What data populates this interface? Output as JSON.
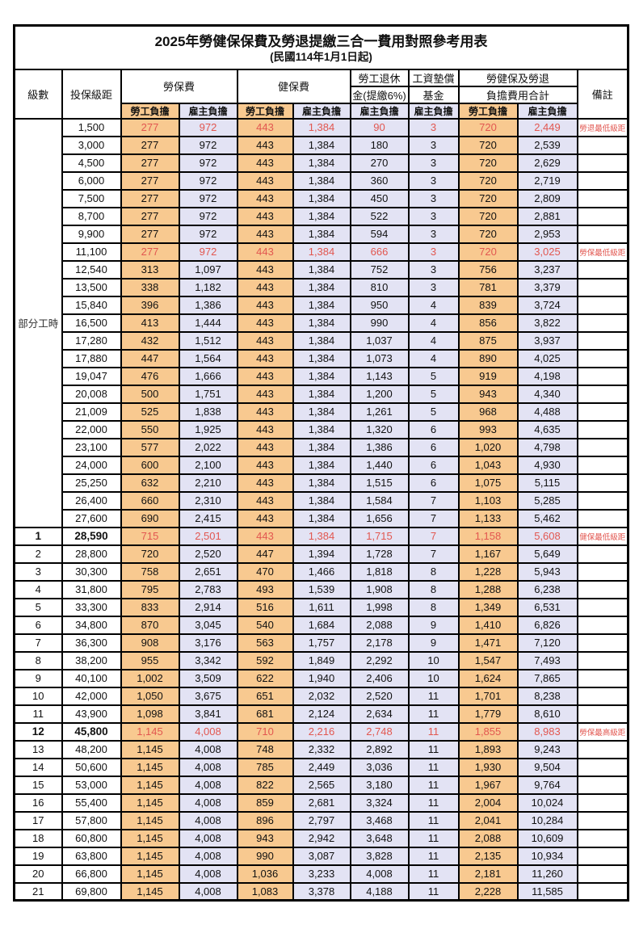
{
  "title": "2025年勞健保保費及勞退提繳三合一費用對照參考用表",
  "subtitle": "(民國114年1月1日起)",
  "columns": {
    "level": "級數",
    "bracket": "投保級距",
    "labor_ins": "勞保費",
    "health_ins": "健保費",
    "pension_line1": "勞工退休",
    "pension_line2": "金(提繳6%)",
    "wage_fund_line1": "工資墊償",
    "wage_fund_line2": "基金",
    "total_line1": "勞健保及勞退",
    "total_line2": "負擔費用合計",
    "remark": "備註"
  },
  "sub_headers": [
    "勞工負擔",
    "雇主負擔",
    "勞工負擔",
    "雇主負擔",
    "雇主負擔",
    "雇主負擔",
    "勞工負擔",
    "雇主負擔"
  ],
  "part_time": {
    "label": "部分工時",
    "rowspan": 23
  },
  "colors": {
    "employee_bg": "#F8C990",
    "employer_bg": "#E3E3F4",
    "highlight_red": "#E25750",
    "border": "#000000"
  },
  "rows": [
    {
      "bracket": "1,500",
      "li_emp": "277",
      "li_er": "972",
      "hi_emp": "443",
      "hi_er": "1,384",
      "pension": "90",
      "fund": "3",
      "tot_emp": "720",
      "tot_er": "2,449",
      "remark": "勞退最低級距",
      "red": true
    },
    {
      "bracket": "3,000",
      "li_emp": "277",
      "li_er": "972",
      "hi_emp": "443",
      "hi_er": "1,384",
      "pension": "180",
      "fund": "3",
      "tot_emp": "720",
      "tot_er": "2,539",
      "remark": ""
    },
    {
      "bracket": "4,500",
      "li_emp": "277",
      "li_er": "972",
      "hi_emp": "443",
      "hi_er": "1,384",
      "pension": "270",
      "fund": "3",
      "tot_emp": "720",
      "tot_er": "2,629",
      "remark": ""
    },
    {
      "bracket": "6,000",
      "li_emp": "277",
      "li_er": "972",
      "hi_emp": "443",
      "hi_er": "1,384",
      "pension": "360",
      "fund": "3",
      "tot_emp": "720",
      "tot_er": "2,719",
      "remark": ""
    },
    {
      "bracket": "7,500",
      "li_emp": "277",
      "li_er": "972",
      "hi_emp": "443",
      "hi_er": "1,384",
      "pension": "450",
      "fund": "3",
      "tot_emp": "720",
      "tot_er": "2,809",
      "remark": ""
    },
    {
      "bracket": "8,700",
      "li_emp": "277",
      "li_er": "972",
      "hi_emp": "443",
      "hi_er": "1,384",
      "pension": "522",
      "fund": "3",
      "tot_emp": "720",
      "tot_er": "2,881",
      "remark": ""
    },
    {
      "bracket": "9,900",
      "li_emp": "277",
      "li_er": "972",
      "hi_emp": "443",
      "hi_er": "1,384",
      "pension": "594",
      "fund": "3",
      "tot_emp": "720",
      "tot_er": "2,953",
      "remark": ""
    },
    {
      "bracket": "11,100",
      "li_emp": "277",
      "li_er": "972",
      "hi_emp": "443",
      "hi_er": "1,384",
      "pension": "666",
      "fund": "3",
      "tot_emp": "720",
      "tot_er": "3,025",
      "remark": "勞保最低級距",
      "red": true
    },
    {
      "bracket": "12,540",
      "li_emp": "313",
      "li_er": "1,097",
      "hi_emp": "443",
      "hi_er": "1,384",
      "pension": "752",
      "fund": "3",
      "tot_emp": "756",
      "tot_er": "3,237",
      "remark": ""
    },
    {
      "bracket": "13,500",
      "li_emp": "338",
      "li_er": "1,182",
      "hi_emp": "443",
      "hi_er": "1,384",
      "pension": "810",
      "fund": "3",
      "tot_emp": "781",
      "tot_er": "3,379",
      "remark": ""
    },
    {
      "bracket": "15,840",
      "li_emp": "396",
      "li_er": "1,386",
      "hi_emp": "443",
      "hi_er": "1,384",
      "pension": "950",
      "fund": "4",
      "tot_emp": "839",
      "tot_er": "3,724",
      "remark": ""
    },
    {
      "bracket": "16,500",
      "li_emp": "413",
      "li_er": "1,444",
      "hi_emp": "443",
      "hi_er": "1,384",
      "pension": "990",
      "fund": "4",
      "tot_emp": "856",
      "tot_er": "3,822",
      "remark": ""
    },
    {
      "bracket": "17,280",
      "li_emp": "432",
      "li_er": "1,512",
      "hi_emp": "443",
      "hi_er": "1,384",
      "pension": "1,037",
      "fund": "4",
      "tot_emp": "875",
      "tot_er": "3,937",
      "remark": ""
    },
    {
      "bracket": "17,880",
      "li_emp": "447",
      "li_er": "1,564",
      "hi_emp": "443",
      "hi_er": "1,384",
      "pension": "1,073",
      "fund": "4",
      "tot_emp": "890",
      "tot_er": "4,025",
      "remark": ""
    },
    {
      "bracket": "19,047",
      "li_emp": "476",
      "li_er": "1,666",
      "hi_emp": "443",
      "hi_er": "1,384",
      "pension": "1,143",
      "fund": "5",
      "tot_emp": "919",
      "tot_er": "4,198",
      "remark": ""
    },
    {
      "bracket": "20,008",
      "li_emp": "500",
      "li_er": "1,751",
      "hi_emp": "443",
      "hi_er": "1,384",
      "pension": "1,200",
      "fund": "5",
      "tot_emp": "943",
      "tot_er": "4,340",
      "remark": ""
    },
    {
      "bracket": "21,009",
      "li_emp": "525",
      "li_er": "1,838",
      "hi_emp": "443",
      "hi_er": "1,384",
      "pension": "1,261",
      "fund": "5",
      "tot_emp": "968",
      "tot_er": "4,488",
      "remark": ""
    },
    {
      "bracket": "22,000",
      "li_emp": "550",
      "li_er": "1,925",
      "hi_emp": "443",
      "hi_er": "1,384",
      "pension": "1,320",
      "fund": "6",
      "tot_emp": "993",
      "tot_er": "4,635",
      "remark": ""
    },
    {
      "bracket": "23,100",
      "li_emp": "577",
      "li_er": "2,022",
      "hi_emp": "443",
      "hi_er": "1,384",
      "pension": "1,386",
      "fund": "6",
      "tot_emp": "1,020",
      "tot_er": "4,798",
      "remark": ""
    },
    {
      "bracket": "24,000",
      "li_emp": "600",
      "li_er": "2,100",
      "hi_emp": "443",
      "hi_er": "1,384",
      "pension": "1,440",
      "fund": "6",
      "tot_emp": "1,043",
      "tot_er": "4,930",
      "remark": ""
    },
    {
      "bracket": "25,250",
      "li_emp": "632",
      "li_er": "2,210",
      "hi_emp": "443",
      "hi_er": "1,384",
      "pension": "1,515",
      "fund": "6",
      "tot_emp": "1,075",
      "tot_er": "5,115",
      "remark": ""
    },
    {
      "bracket": "26,400",
      "li_emp": "660",
      "li_er": "2,310",
      "hi_emp": "443",
      "hi_er": "1,384",
      "pension": "1,584",
      "fund": "7",
      "tot_emp": "1,103",
      "tot_er": "5,285",
      "remark": ""
    },
    {
      "bracket": "27,600",
      "li_emp": "690",
      "li_er": "2,415",
      "hi_emp": "443",
      "hi_er": "1,384",
      "pension": "1,656",
      "fund": "7",
      "tot_emp": "1,133",
      "tot_er": "5,462",
      "remark": ""
    },
    {
      "level": "1",
      "bracket": "28,590",
      "li_emp": "715",
      "li_er": "2,501",
      "hi_emp": "443",
      "hi_er": "1,384",
      "pension": "1,715",
      "fund": "7",
      "tot_emp": "1,158",
      "tot_er": "5,608",
      "remark": "健保最低級距",
      "red": true,
      "bold": true
    },
    {
      "level": "2",
      "bracket": "28,800",
      "li_emp": "720",
      "li_er": "2,520",
      "hi_emp": "447",
      "hi_er": "1,394",
      "pension": "1,728",
      "fund": "7",
      "tot_emp": "1,167",
      "tot_er": "5,649",
      "remark": ""
    },
    {
      "level": "3",
      "bracket": "30,300",
      "li_emp": "758",
      "li_er": "2,651",
      "hi_emp": "470",
      "hi_er": "1,466",
      "pension": "1,818",
      "fund": "8",
      "tot_emp": "1,228",
      "tot_er": "5,943",
      "remark": ""
    },
    {
      "level": "4",
      "bracket": "31,800",
      "li_emp": "795",
      "li_er": "2,783",
      "hi_emp": "493",
      "hi_er": "1,539",
      "pension": "1,908",
      "fund": "8",
      "tot_emp": "1,288",
      "tot_er": "6,238",
      "remark": ""
    },
    {
      "level": "5",
      "bracket": "33,300",
      "li_emp": "833",
      "li_er": "2,914",
      "hi_emp": "516",
      "hi_er": "1,611",
      "pension": "1,998",
      "fund": "8",
      "tot_emp": "1,349",
      "tot_er": "6,531",
      "remark": ""
    },
    {
      "level": "6",
      "bracket": "34,800",
      "li_emp": "870",
      "li_er": "3,045",
      "hi_emp": "540",
      "hi_er": "1,684",
      "pension": "2,088",
      "fund": "9",
      "tot_emp": "1,410",
      "tot_er": "6,826",
      "remark": ""
    },
    {
      "level": "7",
      "bracket": "36,300",
      "li_emp": "908",
      "li_er": "3,176",
      "hi_emp": "563",
      "hi_er": "1,757",
      "pension": "2,178",
      "fund": "9",
      "tot_emp": "1,471",
      "tot_er": "7,120",
      "remark": ""
    },
    {
      "level": "8",
      "bracket": "38,200",
      "li_emp": "955",
      "li_er": "3,342",
      "hi_emp": "592",
      "hi_er": "1,849",
      "pension": "2,292",
      "fund": "10",
      "tot_emp": "1,547",
      "tot_er": "7,493",
      "remark": ""
    },
    {
      "level": "9",
      "bracket": "40,100",
      "li_emp": "1,002",
      "li_er": "3,509",
      "hi_emp": "622",
      "hi_er": "1,940",
      "pension": "2,406",
      "fund": "10",
      "tot_emp": "1,624",
      "tot_er": "7,865",
      "remark": ""
    },
    {
      "level": "10",
      "bracket": "42,000",
      "li_emp": "1,050",
      "li_er": "3,675",
      "hi_emp": "651",
      "hi_er": "2,032",
      "pension": "2,520",
      "fund": "11",
      "tot_emp": "1,701",
      "tot_er": "8,238",
      "remark": ""
    },
    {
      "level": "11",
      "bracket": "43,900",
      "li_emp": "1,098",
      "li_er": "3,841",
      "hi_emp": "681",
      "hi_er": "2,124",
      "pension": "2,634",
      "fund": "11",
      "tot_emp": "1,779",
      "tot_er": "8,610",
      "remark": ""
    },
    {
      "level": "12",
      "bracket": "45,800",
      "li_emp": "1,145",
      "li_er": "4,008",
      "hi_emp": "710",
      "hi_er": "2,216",
      "pension": "2,748",
      "fund": "11",
      "tot_emp": "1,855",
      "tot_er": "8,983",
      "remark": "勞保最高級距",
      "red": true,
      "bold": true
    },
    {
      "level": "13",
      "bracket": "48,200",
      "li_emp": "1,145",
      "li_er": "4,008",
      "hi_emp": "748",
      "hi_er": "2,332",
      "pension": "2,892",
      "fund": "11",
      "tot_emp": "1,893",
      "tot_er": "9,243",
      "remark": ""
    },
    {
      "level": "14",
      "bracket": "50,600",
      "li_emp": "1,145",
      "li_er": "4,008",
      "hi_emp": "785",
      "hi_er": "2,449",
      "pension": "3,036",
      "fund": "11",
      "tot_emp": "1,930",
      "tot_er": "9,504",
      "remark": ""
    },
    {
      "level": "15",
      "bracket": "53,000",
      "li_emp": "1,145",
      "li_er": "4,008",
      "hi_emp": "822",
      "hi_er": "2,565",
      "pension": "3,180",
      "fund": "11",
      "tot_emp": "1,967",
      "tot_er": "9,764",
      "remark": ""
    },
    {
      "level": "16",
      "bracket": "55,400",
      "li_emp": "1,145",
      "li_er": "4,008",
      "hi_emp": "859",
      "hi_er": "2,681",
      "pension": "3,324",
      "fund": "11",
      "tot_emp": "2,004",
      "tot_er": "10,024",
      "remark": ""
    },
    {
      "level": "17",
      "bracket": "57,800",
      "li_emp": "1,145",
      "li_er": "4,008",
      "hi_emp": "896",
      "hi_er": "2,797",
      "pension": "3,468",
      "fund": "11",
      "tot_emp": "2,041",
      "tot_er": "10,284",
      "remark": ""
    },
    {
      "level": "18",
      "bracket": "60,800",
      "li_emp": "1,145",
      "li_er": "4,008",
      "hi_emp": "943",
      "hi_er": "2,942",
      "pension": "3,648",
      "fund": "11",
      "tot_emp": "2,088",
      "tot_er": "10,609",
      "remark": ""
    },
    {
      "level": "19",
      "bracket": "63,800",
      "li_emp": "1,145",
      "li_er": "4,008",
      "hi_emp": "990",
      "hi_er": "3,087",
      "pension": "3,828",
      "fund": "11",
      "tot_emp": "2,135",
      "tot_er": "10,934",
      "remark": ""
    },
    {
      "level": "20",
      "bracket": "66,800",
      "li_emp": "1,145",
      "li_er": "4,008",
      "hi_emp": "1,036",
      "hi_er": "3,233",
      "pension": "4,008",
      "fund": "11",
      "tot_emp": "2,181",
      "tot_er": "11,260",
      "remark": ""
    },
    {
      "level": "21",
      "bracket": "69,800",
      "li_emp": "1,145",
      "li_er": "4,008",
      "hi_emp": "1,083",
      "hi_er": "3,378",
      "pension": "4,188",
      "fund": "11",
      "tot_emp": "2,228",
      "tot_er": "11,585",
      "remark": ""
    }
  ]
}
